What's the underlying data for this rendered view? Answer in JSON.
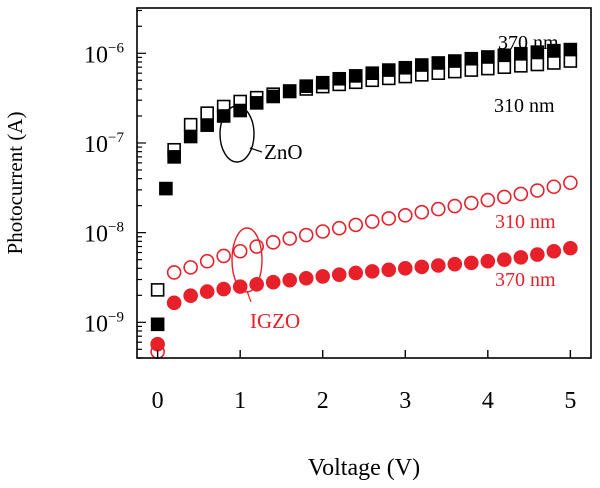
{
  "chart_data": {
    "type": "scatter",
    "xlabel": "Voltage (V)",
    "ylabel": "Photocurrent (A)",
    "xlim": [
      -0.25,
      5.25
    ],
    "ylim": [
      4e-10,
      3.2e-06
    ],
    "yscale": "log",
    "x_ticks": [
      0,
      1,
      2,
      3,
      4,
      5
    ],
    "x_tick_labels": [
      "0",
      "1",
      "2",
      "3",
      "4",
      "5"
    ],
    "y_ticks": [
      1e-09,
      1e-08,
      1e-07,
      1e-06
    ],
    "y_tick_labels": [
      {
        "base": "10",
        "exp": "−9"
      },
      {
        "base": "10",
        "exp": "−8"
      },
      {
        "base": "10",
        "exp": "−7"
      },
      {
        "base": "10",
        "exp": "−6"
      }
    ],
    "grid": false,
    "legend": "none",
    "series": [
      {
        "id": "zno370",
        "marker": "square",
        "filled": true,
        "color": "#000000",
        "label": "370 nm",
        "x": [
          0,
          0.1,
          0.2,
          0.4,
          0.6,
          0.8,
          1.0,
          1.2,
          1.4,
          1.6,
          1.8,
          2.0,
          2.2,
          2.4,
          2.6,
          2.8,
          3.0,
          3.2,
          3.4,
          3.6,
          3.8,
          4.0,
          4.2,
          4.4,
          4.6,
          4.8,
          5.0
        ],
        "y": [
          9.5e-10,
          3.1e-08,
          7e-08,
          1.18e-07,
          1.58e-07,
          2e-07,
          2.3e-07,
          2.8e-07,
          3.3e-07,
          3.8e-07,
          4.3e-07,
          4.7e-07,
          5.2e-07,
          5.6e-07,
          6e-07,
          6.5e-07,
          6.9e-07,
          7.4e-07,
          7.8e-07,
          8.2e-07,
          8.7e-07,
          9.1e-07,
          9.5e-07,
          9.9e-07,
          1.03e-06,
          1.07e-06,
          1.1e-06
        ]
      },
      {
        "id": "zno310",
        "marker": "square",
        "filled": false,
        "color": "#000000",
        "label": "310 nm",
        "x": [
          0,
          0.2,
          0.4,
          0.6,
          0.8,
          1.0,
          1.2,
          1.4,
          1.6,
          1.8,
          2.0,
          2.2,
          2.4,
          2.6,
          2.8,
          3.0,
          3.2,
          3.4,
          3.6,
          3.8,
          4.0,
          4.2,
          4.4,
          4.6,
          4.8,
          5.0
        ],
        "y": [
          2.3e-09,
          8.4e-08,
          1.6e-07,
          2.15e-07,
          2.55e-07,
          2.9e-07,
          3.2e-07,
          3.5e-07,
          3.75e-07,
          4e-07,
          4.25e-07,
          4.5e-07,
          4.75e-07,
          5e-07,
          5.25e-07,
          5.5e-07,
          5.75e-07,
          6e-07,
          6.25e-07,
          6.5e-07,
          6.75e-07,
          7e-07,
          7.25e-07,
          7.5e-07,
          7.8e-07,
          8.2e-07
        ]
      },
      {
        "id": "igzo310",
        "marker": "circle",
        "filled": false,
        "color": "#e8202a",
        "label": "310 nm",
        "x": [
          0,
          0.2,
          0.4,
          0.6,
          0.8,
          1.0,
          1.2,
          1.4,
          1.6,
          1.8,
          2.0,
          2.2,
          2.4,
          2.6,
          2.8,
          3.0,
          3.2,
          3.4,
          3.6,
          3.8,
          4.0,
          4.2,
          4.4,
          4.6,
          4.8,
          5.0
        ],
        "y": [
          4.7e-10,
          3.6e-09,
          4.1e-09,
          4.8e-09,
          5.5e-09,
          6.2e-09,
          7e-09,
          7.8e-09,
          8.6e-09,
          9.4e-09,
          1.03e-08,
          1.12e-08,
          1.22e-08,
          1.33e-08,
          1.44e-08,
          1.56e-08,
          1.69e-08,
          1.83e-08,
          1.98e-08,
          2.14e-08,
          2.31e-08,
          2.5e-08,
          2.7e-08,
          2.95e-08,
          3.25e-08,
          3.6e-08
        ]
      },
      {
        "id": "igzo370",
        "marker": "circle",
        "filled": true,
        "color": "#e8202a",
        "label": "370 nm",
        "x": [
          0,
          0.2,
          0.4,
          0.6,
          0.8,
          1.0,
          1.2,
          1.4,
          1.6,
          1.8,
          2.0,
          2.2,
          2.4,
          2.6,
          2.8,
          3.0,
          3.2,
          3.4,
          3.6,
          3.8,
          4.0,
          4.2,
          4.4,
          4.6,
          4.8,
          5.0
        ],
        "y": [
          5.7e-10,
          1.65e-09,
          1.98e-09,
          2.2e-09,
          2.35e-09,
          2.5e-09,
          2.65e-09,
          2.8e-09,
          2.95e-09,
          3.1e-09,
          3.25e-09,
          3.4e-09,
          3.55e-09,
          3.7e-09,
          3.85e-09,
          4e-09,
          4.15e-09,
          4.3e-09,
          4.45e-09,
          4.6e-09,
          4.8e-09,
          5e-09,
          5.3e-09,
          5.7e-09,
          6.2e-09,
          6.7e-09
        ]
      }
    ],
    "annotations": {
      "zno_label": "ZnO",
      "igzo_label": "IGZO",
      "zno_370": "370 nm",
      "zno_310": "310 nm",
      "igzo_310": "310 nm",
      "igzo_370": "370 nm"
    },
    "colors": {
      "zno": "#000000",
      "igzo": "#e8202a"
    }
  }
}
